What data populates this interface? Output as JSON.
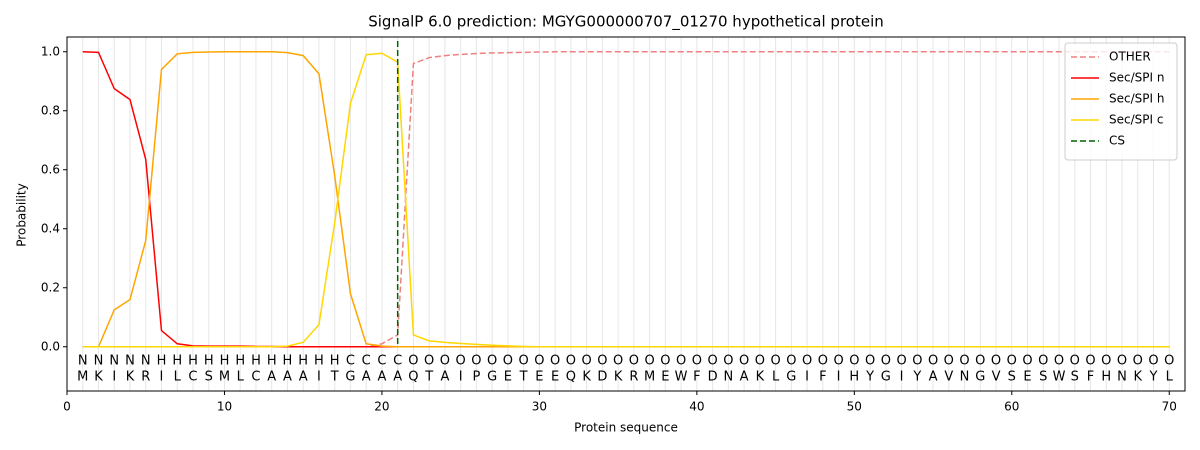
{
  "chart_data": {
    "type": "line",
    "title": "SignalP 6.0 prediction: MGYG000000707_01270 hypothetical protein",
    "xlabel": "Protein sequence",
    "ylabel": "Probability",
    "x": [
      1,
      2,
      3,
      4,
      5,
      6,
      7,
      8,
      9,
      10,
      11,
      12,
      13,
      14,
      15,
      16,
      17,
      18,
      19,
      20,
      21,
      22,
      23,
      24,
      25,
      26,
      27,
      28,
      29,
      30,
      31,
      32,
      33,
      34,
      35,
      36,
      37,
      38,
      39,
      40,
      41,
      42,
      43,
      44,
      45,
      46,
      47,
      48,
      49,
      50,
      51,
      52,
      53,
      54,
      55,
      56,
      57,
      58,
      59,
      60,
      61,
      62,
      63,
      64,
      65,
      66,
      67,
      68,
      69,
      70
    ],
    "series": [
      {
        "name": "OTHER",
        "color": "#f08080",
        "dash": true,
        "values": [
          0,
          0,
          0,
          0,
          0,
          0,
          0,
          0,
          0,
          0,
          0,
          0,
          0,
          0,
          0,
          0,
          0,
          0,
          0,
          0.01,
          0.04,
          0.96,
          0.98,
          0.987,
          0.991,
          0.994,
          0.996,
          0.997,
          0.998,
          0.999,
          1,
          1,
          1,
          1,
          1,
          1,
          1,
          1,
          1,
          1,
          1,
          1,
          1,
          1,
          1,
          1,
          1,
          1,
          1,
          1,
          1,
          1,
          1,
          1,
          1,
          1,
          1,
          1,
          1,
          1,
          1,
          1,
          1,
          1,
          1,
          1,
          1,
          1,
          1,
          1
        ]
      },
      {
        "name": "Sec/SPI n",
        "color": "red",
        "dash": false,
        "values": [
          1.0,
          0.998,
          0.875,
          0.838,
          0.635,
          0.055,
          0.01,
          0.003,
          0.002,
          0.002,
          0.002,
          0.001,
          0.001,
          0,
          0,
          0,
          0,
          0,
          0,
          0,
          0,
          0,
          0,
          0,
          0,
          0,
          0,
          0,
          0,
          0,
          0,
          0,
          0,
          0,
          0,
          0,
          0,
          0,
          0,
          0,
          0,
          0,
          0,
          0,
          0,
          0,
          0,
          0,
          0,
          0,
          0,
          0,
          0,
          0,
          0,
          0,
          0,
          0,
          0,
          0,
          0,
          0,
          0,
          0,
          0,
          0,
          0,
          0,
          0,
          0
        ]
      },
      {
        "name": "Sec/SPI h",
        "color": "orange",
        "dash": false,
        "values": [
          0,
          0,
          0.125,
          0.16,
          0.36,
          0.94,
          0.993,
          0.998,
          0.999,
          1,
          1,
          1,
          1,
          0.997,
          0.987,
          0.925,
          0.58,
          0.18,
          0.01,
          0.002,
          0,
          0,
          0,
          0,
          0,
          0,
          0,
          0,
          0,
          0,
          0,
          0,
          0,
          0,
          0,
          0,
          0,
          0,
          0,
          0,
          0,
          0,
          0,
          0,
          0,
          0,
          0,
          0,
          0,
          0,
          0,
          0,
          0,
          0,
          0,
          0,
          0,
          0,
          0,
          0,
          0,
          0,
          0,
          0,
          0,
          0,
          0,
          0,
          0,
          0
        ]
      },
      {
        "name": "Sec/SPI c",
        "color": "gold",
        "dash": false,
        "values": [
          0,
          0,
          0,
          0,
          0,
          0,
          0,
          0,
          0,
          0,
          0,
          0,
          0,
          0.002,
          0.015,
          0.075,
          0.42,
          0.825,
          0.99,
          0.995,
          0.965,
          0.04,
          0.02,
          0.015,
          0.011,
          0.008,
          0.005,
          0.003,
          0.001,
          0,
          0,
          0,
          0,
          0,
          0,
          0,
          0,
          0,
          0,
          0,
          0,
          0,
          0,
          0,
          0,
          0,
          0,
          0,
          0,
          0,
          0,
          0,
          0,
          0,
          0,
          0,
          0,
          0,
          0,
          0,
          0,
          0,
          0,
          0,
          0,
          0,
          0,
          0,
          0,
          0
        ]
      }
    ],
    "markers": [
      {
        "name": "CS",
        "color": "darkgreen",
        "x": 21
      }
    ],
    "residues": [
      "M",
      "K",
      "I",
      "K",
      "R",
      "I",
      "L",
      "C",
      "S",
      "M",
      "L",
      "C",
      "A",
      "A",
      "A",
      "I",
      "T",
      "G",
      "A",
      "A",
      "A",
      "Q",
      "T",
      "A",
      "I",
      "P",
      "G",
      "E",
      "T",
      "E",
      "E",
      "Q",
      "K",
      "D",
      "K",
      "R",
      "M",
      "E",
      "W",
      "F",
      "D",
      "N",
      "A",
      "K",
      "L",
      "G",
      "I",
      "F",
      "I",
      "H",
      "Y",
      "G",
      "I",
      "Y",
      "A",
      "V",
      "N",
      "G",
      "V",
      "S",
      "E",
      "S",
      "W",
      "S",
      "F",
      "H",
      "N",
      "K",
      "Y",
      "L"
    ],
    "regions": [
      "N",
      "N",
      "N",
      "N",
      "N",
      "H",
      "H",
      "H",
      "H",
      "H",
      "H",
      "H",
      "H",
      "H",
      "H",
      "H",
      "H",
      "C",
      "C",
      "C",
      "C",
      "O",
      "O",
      "O",
      "O",
      "O",
      "O",
      "O",
      "O",
      "O",
      "O",
      "O",
      "O",
      "O",
      "O",
      "O",
      "O",
      "O",
      "O",
      "O",
      "O",
      "O",
      "O",
      "O",
      "O",
      "O",
      "O",
      "O",
      "O",
      "O",
      "O",
      "O",
      "O",
      "O",
      "O",
      "O",
      "O",
      "O",
      "O",
      "O",
      "O",
      "O",
      "O",
      "O",
      "O",
      "O",
      "O",
      "O",
      "O",
      "O"
    ],
    "region_colors": {
      "N": "red",
      "H": "orange",
      "C": "gold",
      "O": "gray"
    },
    "xlim": [
      0,
      71
    ],
    "ylim": [
      -0.15,
      1.05
    ],
    "xticks": [
      0,
      10,
      20,
      30,
      40,
      50,
      60,
      70
    ],
    "yticks": [
      {
        "value": 0,
        "label": "0.0"
      },
      {
        "value": 0.2,
        "label": "0.2"
      },
      {
        "value": 0.4,
        "label": "0.4"
      },
      {
        "value": 0.6,
        "label": "0.6"
      },
      {
        "value": 0.8,
        "label": "0.8"
      },
      {
        "value": 1,
        "label": "1.0"
      }
    ],
    "grid": true,
    "legend": "upper right"
  }
}
